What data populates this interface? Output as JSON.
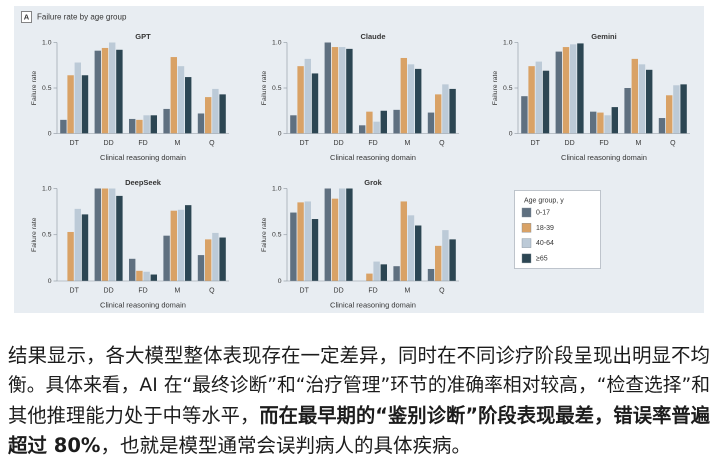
{
  "figure": {
    "panel_label": "A",
    "title": "Failure rate by age group"
  },
  "legend": {
    "title": "Age group, y",
    "items": [
      {
        "label": "0-17",
        "color": "#5f7080"
      },
      {
        "label": "18-39",
        "color": "#d9a266"
      },
      {
        "label": "40-64",
        "color": "#bccad7"
      },
      {
        "label": "≥65",
        "color": "#2c4653"
      }
    ]
  },
  "chart_data": [
    {
      "type": "bar",
      "title": "GPT",
      "xlabel": "Clinical reasoning domain",
      "ylabel": "Failure rate",
      "categories": [
        "DT",
        "DD",
        "FD",
        "M",
        "Q"
      ],
      "ylim": [
        0,
        1
      ],
      "yticks": [
        0,
        0.5,
        1
      ],
      "ytick_labels": [
        "0",
        "0.5",
        "1.0"
      ],
      "series": [
        {
          "name": "0-17",
          "values": [
            0.15,
            0.91,
            0.16,
            0.27,
            0.22
          ]
        },
        {
          "name": "18-39",
          "values": [
            0.64,
            0.94,
            0.15,
            0.84,
            0.4
          ]
        },
        {
          "name": "40-64",
          "values": [
            0.78,
            1.0,
            0.2,
            0.74,
            0.49
          ]
        },
        {
          "name": "≥65",
          "values": [
            0.64,
            0.92,
            0.2,
            0.62,
            0.43
          ]
        }
      ]
    },
    {
      "type": "bar",
      "title": "Claude",
      "xlabel": "Clinical reasoning domain",
      "ylabel": "Failure rate",
      "categories": [
        "DT",
        "DD",
        "FD",
        "M",
        "Q"
      ],
      "ylim": [
        0,
        1
      ],
      "yticks": [
        0,
        0.5,
        1
      ],
      "ytick_labels": [
        "0",
        "0.5",
        "1.0"
      ],
      "series": [
        {
          "name": "0-17",
          "values": [
            0.2,
            1.0,
            0.09,
            0.26,
            0.23
          ]
        },
        {
          "name": "18-39",
          "values": [
            0.74,
            0.95,
            0.24,
            0.83,
            0.43
          ]
        },
        {
          "name": "40-64",
          "values": [
            0.82,
            0.95,
            0.13,
            0.76,
            0.54
          ]
        },
        {
          "name": "≥65",
          "values": [
            0.66,
            0.93,
            0.25,
            0.71,
            0.49
          ]
        }
      ]
    },
    {
      "type": "bar",
      "title": "Gemini",
      "xlabel": "Clinical reasoning domain",
      "ylabel": "Failure rate",
      "categories": [
        "DT",
        "DD",
        "FD",
        "M",
        "Q"
      ],
      "ylim": [
        0,
        1
      ],
      "yticks": [
        0,
        0.5,
        1
      ],
      "ytick_labels": [
        "0",
        "0.5",
        "1.0"
      ],
      "series": [
        {
          "name": "0-17",
          "values": [
            0.41,
            0.9,
            0.24,
            0.5,
            0.17
          ]
        },
        {
          "name": "18-39",
          "values": [
            0.74,
            0.95,
            0.23,
            0.82,
            0.42
          ]
        },
        {
          "name": "40-64",
          "values": [
            0.79,
            0.98,
            0.2,
            0.76,
            0.53
          ]
        },
        {
          "name": "≥65",
          "values": [
            0.69,
            0.99,
            0.29,
            0.7,
            0.54
          ]
        }
      ]
    },
    {
      "type": "bar",
      "title": "DeepSeek",
      "xlabel": "Clinical reasoning domain",
      "ylabel": "Failure rate",
      "categories": [
        "DT",
        "DD",
        "FD",
        "M",
        "Q"
      ],
      "ylim": [
        0,
        1
      ],
      "yticks": [
        0,
        0.5,
        1
      ],
      "ytick_labels": [
        "0",
        "0.5",
        "1.0"
      ],
      "series": [
        {
          "name": "0-17",
          "values": [
            0.0,
            1.0,
            0.24,
            0.49,
            0.28
          ]
        },
        {
          "name": "18-39",
          "values": [
            0.53,
            1.0,
            0.11,
            0.76,
            0.45
          ]
        },
        {
          "name": "40-64",
          "values": [
            0.78,
            1.0,
            0.1,
            0.77,
            0.52
          ]
        },
        {
          "name": "≥65",
          "values": [
            0.72,
            0.92,
            0.07,
            0.82,
            0.47
          ]
        }
      ]
    },
    {
      "type": "bar",
      "title": "Grok",
      "xlabel": "Clinical reasoning domain",
      "ylabel": "Failure rate",
      "categories": [
        "DT",
        "DD",
        "FD",
        "M",
        "Q"
      ],
      "ylim": [
        0,
        1
      ],
      "yticks": [
        0,
        0.5,
        1
      ],
      "ytick_labels": [
        "0",
        "0.5",
        "1.0"
      ],
      "series": [
        {
          "name": "0-17",
          "values": [
            0.74,
            1.0,
            0.0,
            0.16,
            0.13
          ]
        },
        {
          "name": "18-39",
          "values": [
            0.85,
            0.89,
            0.08,
            0.86,
            0.38
          ]
        },
        {
          "name": "40-64",
          "values": [
            0.86,
            1.0,
            0.21,
            0.71,
            0.55
          ]
        },
        {
          "name": "≥65",
          "values": [
            0.67,
            1.0,
            0.18,
            0.6,
            0.45
          ]
        }
      ]
    }
  ],
  "article": {
    "line1": "结果显示，各大模型整体表现存在一定差异，同时在不同诊疗阶段呈现出明显不均",
    "line2": "衡。具体来看，AI 在“最终诊断”和“治疗管理”环节的准确率相对较高，“检查选择”和",
    "line3": "其他推理能力处于中等水平，",
    "line3_emphasis": "而在最早期的“鉴别诊断”阶段表现最差，错误率普遍",
    "line4_emphasis": "超过 80%",
    "line4": "，也就是模型通常会误判病人的具体疾病。"
  }
}
